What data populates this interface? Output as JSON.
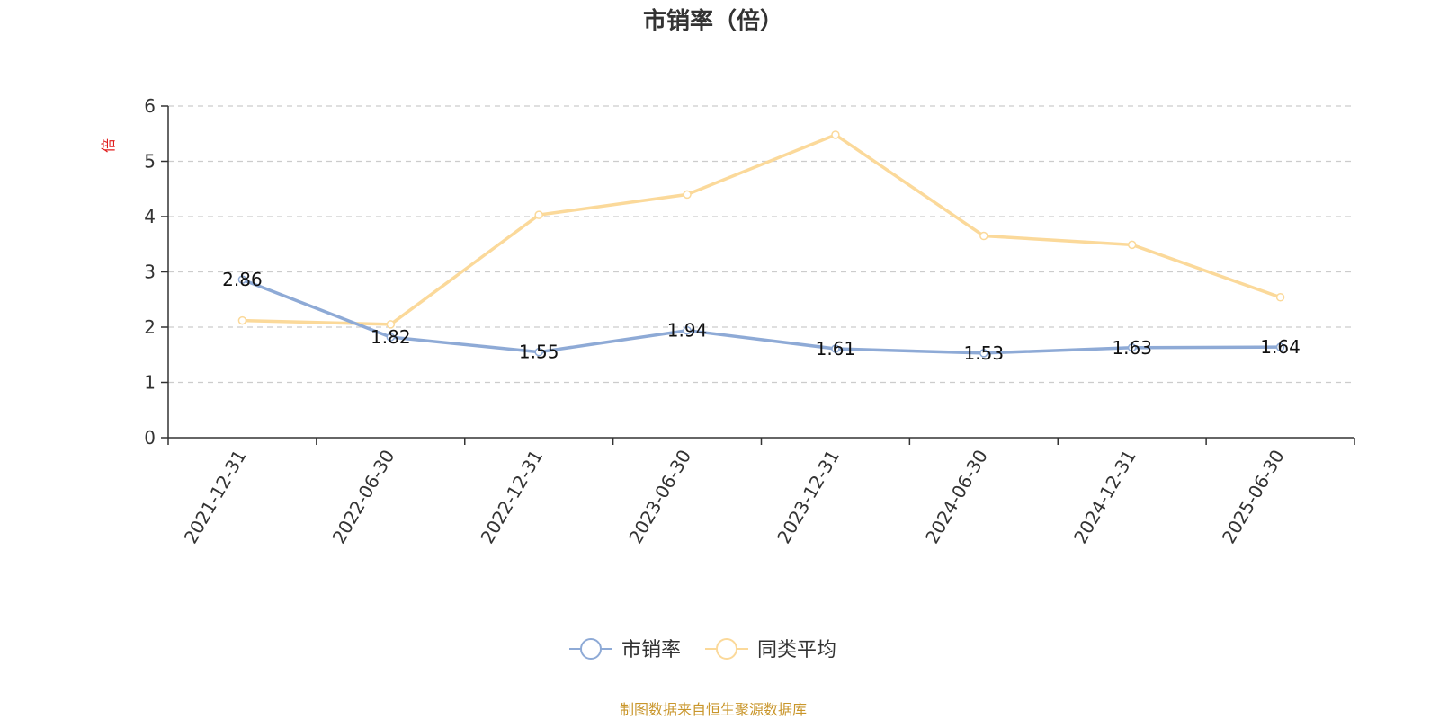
{
  "chart_data": {
    "type": "line",
    "title": "市销率（倍）",
    "ylabel": "倍",
    "ylim": [
      0,
      6
    ],
    "yticks": [
      0,
      1,
      2,
      3,
      4,
      5,
      6
    ],
    "grid": true,
    "legend_position": "bottom",
    "categories": [
      "2021-12-31",
      "2022-06-30",
      "2022-12-31",
      "2023-06-30",
      "2023-12-31",
      "2024-06-30",
      "2024-12-31",
      "2025-06-30"
    ],
    "series": [
      {
        "name": "市销率",
        "color": "#8eaad6",
        "values": [
          2.86,
          1.82,
          1.55,
          1.94,
          1.61,
          1.53,
          1.63,
          1.64
        ],
        "show_labels": true
      },
      {
        "name": "同类平均",
        "color": "#fbd99a",
        "values": [
          2.12,
          2.05,
          4.03,
          4.4,
          5.48,
          3.65,
          3.49,
          2.54
        ],
        "show_labels": false
      }
    ],
    "source": "制图数据来自恒生聚源数据库"
  }
}
